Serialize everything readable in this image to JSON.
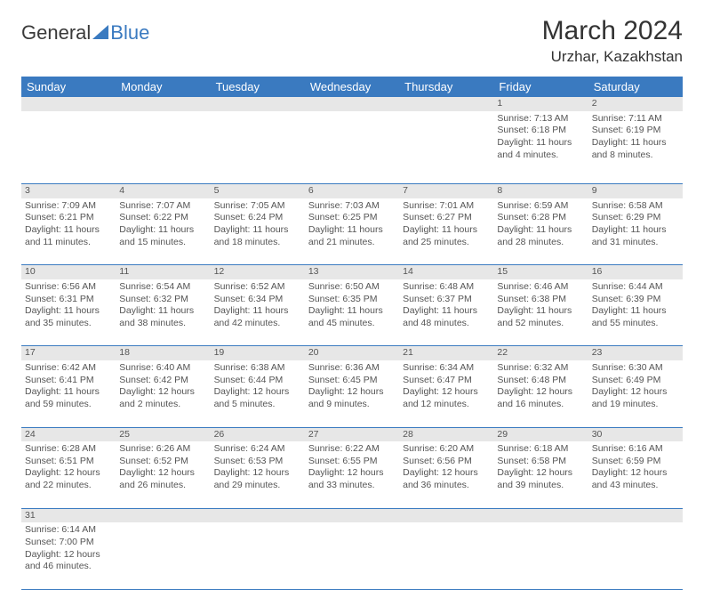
{
  "logo": {
    "text1": "General",
    "text2": "Blue"
  },
  "title": "March 2024",
  "location": "Urzhar, Kazakhstan",
  "colors": {
    "header_bg": "#3a7ac0",
    "header_fg": "#ffffff",
    "daynum_bg": "#e7e7e7",
    "border": "#3a7ac0",
    "text": "#555555",
    "background": "#ffffff"
  },
  "day_labels": [
    "Sunday",
    "Monday",
    "Tuesday",
    "Wednesday",
    "Thursday",
    "Friday",
    "Saturday"
  ],
  "weeks": [
    [
      null,
      null,
      null,
      null,
      null,
      {
        "n": "1",
        "sunrise": "Sunrise: 7:13 AM",
        "sunset": "Sunset: 6:18 PM",
        "day1": "Daylight: 11 hours",
        "day2": "and 4 minutes."
      },
      {
        "n": "2",
        "sunrise": "Sunrise: 7:11 AM",
        "sunset": "Sunset: 6:19 PM",
        "day1": "Daylight: 11 hours",
        "day2": "and 8 minutes."
      }
    ],
    [
      {
        "n": "3",
        "sunrise": "Sunrise: 7:09 AM",
        "sunset": "Sunset: 6:21 PM",
        "day1": "Daylight: 11 hours",
        "day2": "and 11 minutes."
      },
      {
        "n": "4",
        "sunrise": "Sunrise: 7:07 AM",
        "sunset": "Sunset: 6:22 PM",
        "day1": "Daylight: 11 hours",
        "day2": "and 15 minutes."
      },
      {
        "n": "5",
        "sunrise": "Sunrise: 7:05 AM",
        "sunset": "Sunset: 6:24 PM",
        "day1": "Daylight: 11 hours",
        "day2": "and 18 minutes."
      },
      {
        "n": "6",
        "sunrise": "Sunrise: 7:03 AM",
        "sunset": "Sunset: 6:25 PM",
        "day1": "Daylight: 11 hours",
        "day2": "and 21 minutes."
      },
      {
        "n": "7",
        "sunrise": "Sunrise: 7:01 AM",
        "sunset": "Sunset: 6:27 PM",
        "day1": "Daylight: 11 hours",
        "day2": "and 25 minutes."
      },
      {
        "n": "8",
        "sunrise": "Sunrise: 6:59 AM",
        "sunset": "Sunset: 6:28 PM",
        "day1": "Daylight: 11 hours",
        "day2": "and 28 minutes."
      },
      {
        "n": "9",
        "sunrise": "Sunrise: 6:58 AM",
        "sunset": "Sunset: 6:29 PM",
        "day1": "Daylight: 11 hours",
        "day2": "and 31 minutes."
      }
    ],
    [
      {
        "n": "10",
        "sunrise": "Sunrise: 6:56 AM",
        "sunset": "Sunset: 6:31 PM",
        "day1": "Daylight: 11 hours",
        "day2": "and 35 minutes."
      },
      {
        "n": "11",
        "sunrise": "Sunrise: 6:54 AM",
        "sunset": "Sunset: 6:32 PM",
        "day1": "Daylight: 11 hours",
        "day2": "and 38 minutes."
      },
      {
        "n": "12",
        "sunrise": "Sunrise: 6:52 AM",
        "sunset": "Sunset: 6:34 PM",
        "day1": "Daylight: 11 hours",
        "day2": "and 42 minutes."
      },
      {
        "n": "13",
        "sunrise": "Sunrise: 6:50 AM",
        "sunset": "Sunset: 6:35 PM",
        "day1": "Daylight: 11 hours",
        "day2": "and 45 minutes."
      },
      {
        "n": "14",
        "sunrise": "Sunrise: 6:48 AM",
        "sunset": "Sunset: 6:37 PM",
        "day1": "Daylight: 11 hours",
        "day2": "and 48 minutes."
      },
      {
        "n": "15",
        "sunrise": "Sunrise: 6:46 AM",
        "sunset": "Sunset: 6:38 PM",
        "day1": "Daylight: 11 hours",
        "day2": "and 52 minutes."
      },
      {
        "n": "16",
        "sunrise": "Sunrise: 6:44 AM",
        "sunset": "Sunset: 6:39 PM",
        "day1": "Daylight: 11 hours",
        "day2": "and 55 minutes."
      }
    ],
    [
      {
        "n": "17",
        "sunrise": "Sunrise: 6:42 AM",
        "sunset": "Sunset: 6:41 PM",
        "day1": "Daylight: 11 hours",
        "day2": "and 59 minutes."
      },
      {
        "n": "18",
        "sunrise": "Sunrise: 6:40 AM",
        "sunset": "Sunset: 6:42 PM",
        "day1": "Daylight: 12 hours",
        "day2": "and 2 minutes."
      },
      {
        "n": "19",
        "sunrise": "Sunrise: 6:38 AM",
        "sunset": "Sunset: 6:44 PM",
        "day1": "Daylight: 12 hours",
        "day2": "and 5 minutes."
      },
      {
        "n": "20",
        "sunrise": "Sunrise: 6:36 AM",
        "sunset": "Sunset: 6:45 PM",
        "day1": "Daylight: 12 hours",
        "day2": "and 9 minutes."
      },
      {
        "n": "21",
        "sunrise": "Sunrise: 6:34 AM",
        "sunset": "Sunset: 6:47 PM",
        "day1": "Daylight: 12 hours",
        "day2": "and 12 minutes."
      },
      {
        "n": "22",
        "sunrise": "Sunrise: 6:32 AM",
        "sunset": "Sunset: 6:48 PM",
        "day1": "Daylight: 12 hours",
        "day2": "and 16 minutes."
      },
      {
        "n": "23",
        "sunrise": "Sunrise: 6:30 AM",
        "sunset": "Sunset: 6:49 PM",
        "day1": "Daylight: 12 hours",
        "day2": "and 19 minutes."
      }
    ],
    [
      {
        "n": "24",
        "sunrise": "Sunrise: 6:28 AM",
        "sunset": "Sunset: 6:51 PM",
        "day1": "Daylight: 12 hours",
        "day2": "and 22 minutes."
      },
      {
        "n": "25",
        "sunrise": "Sunrise: 6:26 AM",
        "sunset": "Sunset: 6:52 PM",
        "day1": "Daylight: 12 hours",
        "day2": "and 26 minutes."
      },
      {
        "n": "26",
        "sunrise": "Sunrise: 6:24 AM",
        "sunset": "Sunset: 6:53 PM",
        "day1": "Daylight: 12 hours",
        "day2": "and 29 minutes."
      },
      {
        "n": "27",
        "sunrise": "Sunrise: 6:22 AM",
        "sunset": "Sunset: 6:55 PM",
        "day1": "Daylight: 12 hours",
        "day2": "and 33 minutes."
      },
      {
        "n": "28",
        "sunrise": "Sunrise: 6:20 AM",
        "sunset": "Sunset: 6:56 PM",
        "day1": "Daylight: 12 hours",
        "day2": "and 36 minutes."
      },
      {
        "n": "29",
        "sunrise": "Sunrise: 6:18 AM",
        "sunset": "Sunset: 6:58 PM",
        "day1": "Daylight: 12 hours",
        "day2": "and 39 minutes."
      },
      {
        "n": "30",
        "sunrise": "Sunrise: 6:16 AM",
        "sunset": "Sunset: 6:59 PM",
        "day1": "Daylight: 12 hours",
        "day2": "and 43 minutes."
      }
    ],
    [
      {
        "n": "31",
        "sunrise": "Sunrise: 6:14 AM",
        "sunset": "Sunset: 7:00 PM",
        "day1": "Daylight: 12 hours",
        "day2": "and 46 minutes."
      },
      null,
      null,
      null,
      null,
      null,
      null
    ]
  ]
}
